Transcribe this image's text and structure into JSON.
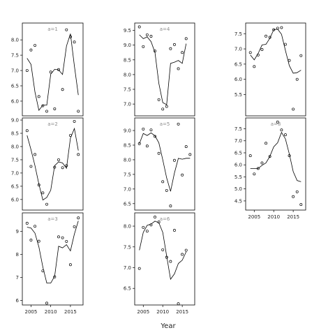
{
  "xlabel": "Year",
  "chart_data": {
    "type": "line",
    "layout": "facet-grid",
    "grid": false,
    "xlabel": "Year",
    "xlim": [
      2002.8,
      2018.2
    ],
    "xticks": [
      2005,
      2010,
      2015
    ],
    "panels": [
      {
        "label": "a=1",
        "row": 0,
        "col": 0,
        "ylim": [
          5.52,
          8.55
        ],
        "yticks": [
          6.0,
          6.5,
          7.0,
          7.5,
          8.0
        ],
        "points": [
          [
            2004,
            7.0
          ],
          [
            2005,
            7.67
          ],
          [
            2006,
            7.82
          ],
          [
            2007,
            6.15
          ],
          [
            2008,
            5.85
          ],
          [
            2009,
            5.67
          ],
          [
            2010,
            6.95
          ],
          [
            2011,
            5.75
          ],
          [
            2012,
            7.03
          ],
          [
            2013,
            6.38
          ],
          [
            2014,
            8.33
          ],
          [
            2015,
            8.1
          ],
          [
            2016,
            7.93
          ],
          [
            2017,
            5.67
          ]
        ],
        "fit": [
          [
            2004,
            7.4
          ],
          [
            2005,
            7.2
          ],
          [
            2006,
            6.3
          ],
          [
            2007,
            5.7
          ],
          [
            2008,
            5.87
          ],
          [
            2009,
            5.87
          ],
          [
            2010,
            6.88
          ],
          [
            2011,
            7.04
          ],
          [
            2012,
            7.02
          ],
          [
            2013,
            6.87
          ],
          [
            2014,
            7.8
          ],
          [
            2015,
            8.2
          ],
          [
            2016,
            7.15
          ],
          [
            2017,
            6.2
          ]
        ]
      },
      {
        "label": "a=4",
        "row": 0,
        "col": 1,
        "ylim": [
          6.6,
          9.75
        ],
        "yticks": [
          7.0,
          7.5,
          8.0,
          8.5,
          9.0,
          9.5
        ],
        "points": [
          [
            2004,
            9.62
          ],
          [
            2005,
            8.95
          ],
          [
            2006,
            9.35
          ],
          [
            2007,
            9.3
          ],
          [
            2008,
            8.8
          ],
          [
            2009,
            7.15
          ],
          [
            2010,
            6.83
          ],
          [
            2011,
            6.92
          ],
          [
            2012,
            8.88
          ],
          [
            2013,
            9.02
          ],
          [
            2014,
            8.2
          ],
          [
            2015,
            8.75
          ],
          [
            2016,
            9.22
          ]
        ],
        "fit": [
          [
            2004,
            9.35
          ],
          [
            2005,
            9.22
          ],
          [
            2006,
            9.28
          ],
          [
            2007,
            9.12
          ],
          [
            2008,
            8.75
          ],
          [
            2009,
            7.7
          ],
          [
            2010,
            7.05
          ],
          [
            2011,
            6.98
          ],
          [
            2012,
            8.38
          ],
          [
            2013,
            8.42
          ],
          [
            2014,
            8.48
          ],
          [
            2015,
            8.38
          ],
          [
            2016,
            9.05
          ]
        ]
      },
      {
        "label": "",
        "row": 0,
        "col": 2,
        "ylim": [
          4.8,
          7.85
        ],
        "yticks": [
          5.5,
          6.0,
          6.5,
          7.0,
          7.5
        ],
        "points": [
          [
            2004,
            6.88
          ],
          [
            2005,
            6.42
          ],
          [
            2006,
            6.8
          ],
          [
            2007,
            6.98
          ],
          [
            2008,
            7.42
          ],
          [
            2009,
            7.38
          ],
          [
            2010,
            7.63
          ],
          [
            2011,
            7.68
          ],
          [
            2012,
            7.7
          ],
          [
            2013,
            7.15
          ],
          [
            2014,
            6.62
          ],
          [
            2015,
            5.02
          ],
          [
            2016,
            6.0
          ],
          [
            2017,
            6.78
          ]
        ],
        "fit": [
          [
            2004,
            6.8
          ],
          [
            2005,
            6.64
          ],
          [
            2006,
            6.85
          ],
          [
            2007,
            7.13
          ],
          [
            2008,
            7.15
          ],
          [
            2009,
            7.35
          ],
          [
            2010,
            7.63
          ],
          [
            2011,
            7.65
          ],
          [
            2012,
            7.48
          ],
          [
            2013,
            6.95
          ],
          [
            2014,
            6.45
          ],
          [
            2015,
            6.2
          ],
          [
            2016,
            6.22
          ],
          [
            2017,
            6.3
          ]
        ]
      },
      {
        "label": "a=2",
        "row": 1,
        "col": 0,
        "ylim": [
          5.6,
          9.08
        ],
        "yticks": [
          6.0,
          6.5,
          7.0,
          7.5,
          8.0,
          8.5,
          9.0
        ],
        "points": [
          [
            2004,
            8.6
          ],
          [
            2005,
            7.25
          ],
          [
            2006,
            7.7
          ],
          [
            2007,
            6.55
          ],
          [
            2008,
            6.25
          ],
          [
            2009,
            5.82
          ],
          [
            2011,
            7.22
          ],
          [
            2012,
            7.5
          ],
          [
            2013,
            7.2
          ],
          [
            2014,
            7.28
          ],
          [
            2015,
            8.42
          ],
          [
            2016,
            8.95
          ],
          [
            2017,
            7.7
          ]
        ],
        "fit": [
          [
            2004,
            8.42
          ],
          [
            2005,
            7.88
          ],
          [
            2006,
            7.28
          ],
          [
            2007,
            6.58
          ],
          [
            2008,
            5.98
          ],
          [
            2009,
            6.08
          ],
          [
            2010,
            6.35
          ],
          [
            2011,
            7.28
          ],
          [
            2012,
            7.42
          ],
          [
            2013,
            7.38
          ],
          [
            2014,
            7.18
          ],
          [
            2015,
            8.32
          ],
          [
            2016,
            8.68
          ],
          [
            2017,
            7.85
          ]
        ]
      },
      {
        "label": "a=5",
        "row": 1,
        "col": 1,
        "ylim": [
          6.28,
          9.43
        ],
        "yticks": [
          6.5,
          7.0,
          7.5,
          8.0,
          8.5,
          9.0
        ],
        "points": [
          [
            2004,
            8.55
          ],
          [
            2005,
            9.05
          ],
          [
            2006,
            8.47
          ],
          [
            2007,
            9.02
          ],
          [
            2008,
            8.8
          ],
          [
            2009,
            8.22
          ],
          [
            2010,
            7.25
          ],
          [
            2011,
            6.95
          ],
          [
            2012,
            6.42
          ],
          [
            2013,
            7.98
          ],
          [
            2014,
            9.22
          ],
          [
            2015,
            7.48
          ],
          [
            2016,
            8.45
          ],
          [
            2017,
            8.18
          ]
        ],
        "fit": [
          [
            2004,
            8.55
          ],
          [
            2005,
            8.9
          ],
          [
            2006,
            8.83
          ],
          [
            2007,
            8.92
          ],
          [
            2008,
            8.82
          ],
          [
            2009,
            8.58
          ],
          [
            2010,
            8.0
          ],
          [
            2011,
            7.38
          ],
          [
            2012,
            6.92
          ],
          [
            2013,
            7.55
          ],
          [
            2014,
            8.05
          ],
          [
            2015,
            8.02
          ],
          [
            2016,
            8.05
          ],
          [
            2017,
            8.05
          ]
        ]
      },
      {
        "label": "a=8",
        "row": 1,
        "col": 2,
        "ylim": [
          4.12,
          7.95
        ],
        "yticks": [
          4.5,
          5.0,
          5.5,
          6.0,
          6.5,
          7.0,
          7.5
        ],
        "points": [
          [
            2004,
            6.38
          ],
          [
            2005,
            5.62
          ],
          [
            2006,
            5.85
          ],
          [
            2007,
            6.08
          ],
          [
            2008,
            6.9
          ],
          [
            2009,
            6.35
          ],
          [
            2011,
            7.78
          ],
          [
            2012,
            7.45
          ],
          [
            2013,
            7.25
          ],
          [
            2014,
            6.38
          ],
          [
            2015,
            4.68
          ],
          [
            2016,
            4.88
          ],
          [
            2017,
            4.35
          ]
        ],
        "fit": [
          [
            2004,
            5.85
          ],
          [
            2005,
            5.85
          ],
          [
            2006,
            5.85
          ],
          [
            2007,
            5.98
          ],
          [
            2008,
            6.08
          ],
          [
            2009,
            6.35
          ],
          [
            2010,
            6.75
          ],
          [
            2011,
            6.92
          ],
          [
            2012,
            7.35
          ],
          [
            2013,
            7.08
          ],
          [
            2014,
            6.45
          ],
          [
            2015,
            5.72
          ],
          [
            2016,
            5.35
          ],
          [
            2017,
            5.3
          ]
        ]
      },
      {
        "label": "a=3",
        "row": 2,
        "col": 0,
        "ylim": [
          5.8,
          9.8
        ],
        "yticks": [
          6,
          7,
          8,
          9
        ],
        "points": [
          [
            2004,
            9.35
          ],
          [
            2005,
            8.62
          ],
          [
            2006,
            9.22
          ],
          [
            2007,
            8.57
          ],
          [
            2008,
            7.28
          ],
          [
            2009,
            5.88
          ],
          [
            2011,
            7.02
          ],
          [
            2012,
            8.76
          ],
          [
            2013,
            8.72
          ],
          [
            2014,
            8.56
          ],
          [
            2015,
            7.55
          ],
          [
            2016,
            9.2
          ],
          [
            2017,
            9.58
          ]
        ],
        "fit": [
          [
            2004,
            9.18
          ],
          [
            2005,
            9.14
          ],
          [
            2006,
            8.92
          ],
          [
            2007,
            8.32
          ],
          [
            2008,
            7.45
          ],
          [
            2009,
            6.75
          ],
          [
            2010,
            6.75
          ],
          [
            2011,
            7.05
          ],
          [
            2012,
            8.35
          ],
          [
            2013,
            8.28
          ],
          [
            2014,
            8.42
          ],
          [
            2015,
            8.15
          ],
          [
            2016,
            8.88
          ],
          [
            2017,
            9.45
          ]
        ]
      },
      {
        "label": "a=6",
        "row": 2,
        "col": 1,
        "ylim": [
          6.1,
          8.32
        ],
        "yticks": [
          6.5,
          7.0,
          7.5,
          8.0
        ],
        "points": [
          [
            2004,
            6.98
          ],
          [
            2005,
            7.97
          ],
          [
            2006,
            7.88
          ],
          [
            2007,
            8.03
          ],
          [
            2008,
            8.22
          ],
          [
            2009,
            8.1
          ],
          [
            2010,
            7.43
          ],
          [
            2011,
            7.25
          ],
          [
            2012,
            7.15
          ],
          [
            2013,
            7.9
          ],
          [
            2014,
            6.13
          ],
          [
            2015,
            7.32
          ],
          [
            2016,
            7.42
          ]
        ],
        "fit": [
          [
            2004,
            7.42
          ],
          [
            2005,
            7.85
          ],
          [
            2006,
            8.02
          ],
          [
            2007,
            8.05
          ],
          [
            2008,
            8.12
          ],
          [
            2009,
            8.08
          ],
          [
            2010,
            7.85
          ],
          [
            2011,
            7.28
          ],
          [
            2012,
            6.72
          ],
          [
            2013,
            6.85
          ],
          [
            2014,
            7.1
          ],
          [
            2015,
            7.18
          ],
          [
            2016,
            7.38
          ]
        ]
      }
    ]
  }
}
